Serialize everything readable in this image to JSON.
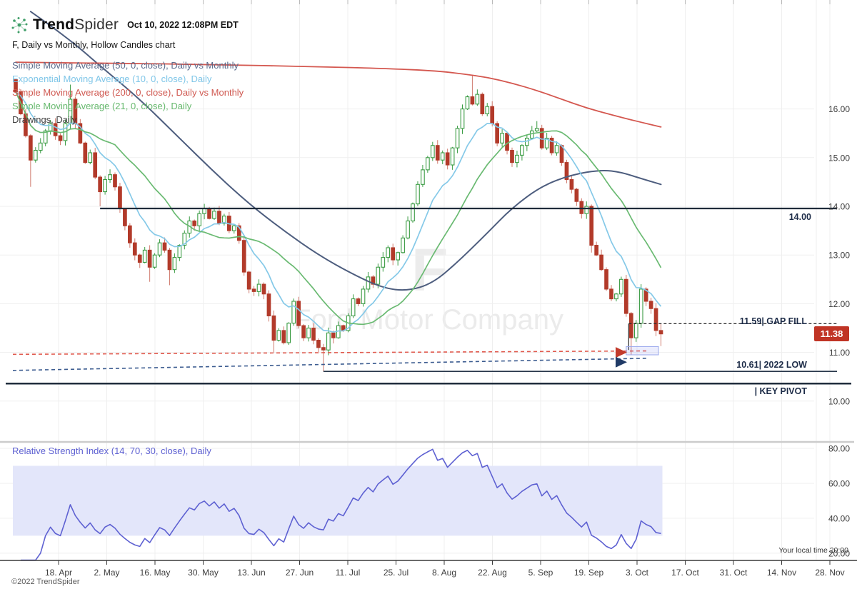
{
  "header": {
    "brand_bold": "Trend",
    "brand_light": "Spider",
    "timestamp": "Oct 10, 2022 12:08PM EDT",
    "subtitle": "F, Daily vs Monthly, Hollow Candles chart"
  },
  "legend": {
    "items": [
      {
        "label": "Simple Moving Average (50, 0, close), Daily vs Monthly",
        "color": "#5b6b8c"
      },
      {
        "label": "Exponential Moving Average (10, 0, close), Daily",
        "color": "#7fc6e8"
      },
      {
        "label": "Simple Moving Average (200, 0, close), Daily vs Monthly",
        "color": "#d05a52"
      },
      {
        "label": "Simple Moving Average (21, 0, close), Daily",
        "color": "#67b96e"
      },
      {
        "label": "Drawings, Daily",
        "color": "#3f3f3f"
      }
    ]
  },
  "watermark": {
    "symbol": "F",
    "name": "Ford Motor Company"
  },
  "price_axis": {
    "labels": [
      "16.00",
      "15.00",
      "14.00",
      "13.00",
      "12.00",
      "11.00",
      "10.00"
    ],
    "values": [
      16,
      15,
      14,
      13,
      12,
      11,
      10
    ]
  },
  "annotations": {
    "resistance_label": "14.00",
    "gap": {
      "value": "11.59",
      "label": "| GAP FILL"
    },
    "low": {
      "value": "10.61",
      "label": "| 2022 LOW"
    },
    "pivot": {
      "label": "| KEY PIVOT"
    },
    "price_tag": "11.38"
  },
  "rsi": {
    "legend": "Relative Strength Index (14, 70, 30, close), Daily",
    "color": "#5e61d2",
    "axis_labels": [
      "80.00",
      "60.00",
      "40.00",
      "20.00"
    ],
    "axis_values": [
      80,
      60,
      40,
      20
    ],
    "band": [
      30,
      70
    ]
  },
  "x_axis": {
    "dates": [
      "18. Apr",
      "2. May",
      "16. May",
      "30. May",
      "13. Jun",
      "27. Jun",
      "11. Jul",
      "25. Jul",
      "8. Aug",
      "22. Aug",
      "5. Sep",
      "19. Sep",
      "3. Oct",
      "17. Oct",
      "31. Oct",
      "14. Nov",
      "28. Nov"
    ]
  },
  "footer": {
    "local_time": "Your local time 20:00",
    "copyright": "©2022 TrendSpider"
  },
  "chart_data": {
    "type": "candlestick",
    "symbol": "F",
    "style": "hollow_candles",
    "timeframe": "Daily vs Monthly",
    "title": "F, Daily vs Monthly, Hollow Candles chart",
    "ylim": [
      9.8,
      17.2
    ],
    "yticks": [
      16,
      15,
      14,
      13,
      12,
      11,
      10
    ],
    "first_open": 16.6,
    "closes": [
      16.35,
      15.9,
      15.45,
      14.95,
      15.15,
      15.3,
      15.55,
      15.7,
      15.45,
      15.35,
      15.7,
      16.2,
      15.7,
      15.3,
      14.9,
      15.1,
      14.6,
      14.3,
      14.55,
      14.65,
      14.4,
      13.95,
      13.6,
      13.25,
      13.0,
      12.85,
      13.1,
      12.75,
      13.0,
      13.25,
      13.1,
      12.7,
      12.95,
      13.2,
      13.45,
      13.7,
      13.6,
      13.85,
      13.95,
      13.75,
      13.9,
      13.65,
      13.8,
      13.5,
      13.6,
      13.3,
      12.65,
      12.3,
      12.25,
      12.4,
      12.2,
      11.75,
      11.25,
      11.45,
      11.2,
      11.6,
      12.05,
      11.55,
      11.3,
      11.5,
      11.25,
      11.1,
      11.05,
      11.4,
      11.3,
      11.55,
      11.45,
      11.75,
      12.1,
      12.0,
      12.3,
      12.55,
      12.4,
      12.75,
      12.95,
      13.15,
      12.9,
      13.05,
      13.35,
      13.7,
      14.05,
      14.45,
      14.75,
      15.0,
      15.25,
      14.95,
      15.1,
      14.85,
      15.2,
      15.6,
      16.0,
      16.25,
      16.1,
      16.3,
      15.9,
      16.05,
      15.7,
      15.3,
      15.5,
      15.15,
      14.9,
      15.05,
      15.25,
      15.4,
      15.55,
      15.6,
      15.2,
      15.4,
      15.1,
      15.25,
      14.9,
      14.55,
      14.35,
      14.1,
      13.85,
      14.0,
      13.2,
      13.0,
      12.7,
      12.3,
      12.1,
      12.2,
      12.5,
      11.8,
      11.3,
      11.6,
      12.3,
      12.05,
      11.9,
      11.45,
      11.38
    ],
    "wick_overrides": {
      "3": {
        "l": 14.4
      },
      "11": {
        "h": 16.5
      },
      "17": {
        "l": 14.0
      },
      "27": {
        "l": 12.45
      },
      "31": {
        "l": 12.38
      },
      "52": {
        "l": 11.0
      },
      "62": {
        "l": 10.61
      },
      "92": {
        "h": 16.68
      },
      "105": {
        "h": 15.75
      },
      "116": {
        "l": 13.05
      },
      "124": {
        "l": 10.95
      },
      "130": {
        "h": 11.58,
        "l": 11.13
      }
    },
    "candle_up_color": "#3b9c44",
    "candle_down_color": "#b23a2a",
    "overlays": [
      {
        "name": "Simple Moving Average (50, 0, close), Daily vs Monthly",
        "color": "#4d5d7e",
        "width": 2,
        "points": [
          [
            3,
            18.0
          ],
          [
            10,
            17.5
          ],
          [
            18,
            16.8
          ],
          [
            25,
            16.2
          ],
          [
            33,
            15.4
          ],
          [
            40,
            14.7
          ],
          [
            47,
            14.05
          ],
          [
            54,
            13.5
          ],
          [
            61,
            13.0
          ],
          [
            68,
            12.6
          ],
          [
            74,
            12.32
          ],
          [
            79,
            12.26
          ],
          [
            84,
            12.42
          ],
          [
            89,
            12.85
          ],
          [
            95,
            13.45
          ],
          [
            100,
            13.97
          ],
          [
            106,
            14.42
          ],
          [
            112,
            14.65
          ],
          [
            118,
            14.75
          ],
          [
            122,
            14.7
          ],
          [
            126,
            14.57
          ],
          [
            130,
            14.45
          ]
        ]
      },
      {
        "name": "Simple Moving Average (200, 0, close), Daily vs Monthly",
        "color": "#d4574f",
        "width": 1.8,
        "points": [
          [
            0,
            16.96
          ],
          [
            20,
            16.94
          ],
          [
            40,
            16.91
          ],
          [
            60,
            16.87
          ],
          [
            75,
            16.83
          ],
          [
            85,
            16.78
          ],
          [
            90,
            16.72
          ],
          [
            95,
            16.65
          ],
          [
            100,
            16.53
          ],
          [
            105,
            16.38
          ],
          [
            110,
            16.2
          ],
          [
            115,
            16.02
          ],
          [
            120,
            15.88
          ],
          [
            125,
            15.75
          ],
          [
            130,
            15.63
          ]
        ]
      },
      {
        "name": "Exponential Moving Average (10, 0, close), Daily",
        "color": "#85c9e8",
        "width": 1.7,
        "derive": "ema",
        "period": 10
      },
      {
        "name": "Simple Moving Average (21, 0, close), Daily",
        "color": "#6aba72",
        "width": 1.7,
        "derive": "sma",
        "period": 21
      }
    ],
    "levels": {
      "resistance": 14.0,
      "gap_fill": 11.59,
      "low_2022": 10.61,
      "key_pivot": 10.36,
      "last_price": 11.38
    },
    "drawings": {
      "red_dashed_ray": {
        "from_price": 10.96,
        "to_price": 11.03,
        "color": "#e05a4e"
      },
      "blue_dashed_ray": {
        "from_price": 10.63,
        "to_price": 10.88,
        "color": "#3c5c90"
      },
      "gap_anchor_index": 123.5,
      "gap_bottom_price": 11.05,
      "highlight_box": {
        "from_index": 123,
        "to_index": 129.5,
        "price_low": 10.95,
        "price_high": 11.12
      },
      "arrows": [
        {
          "price": 11.0,
          "color": "#c23b2c"
        },
        {
          "price": 10.8,
          "color": "#203a66"
        }
      ]
    },
    "rsi": {
      "period": 14,
      "overbought": 70,
      "oversold": 30
    },
    "rsi_yticks": [
      80,
      60,
      40,
      20
    ]
  }
}
